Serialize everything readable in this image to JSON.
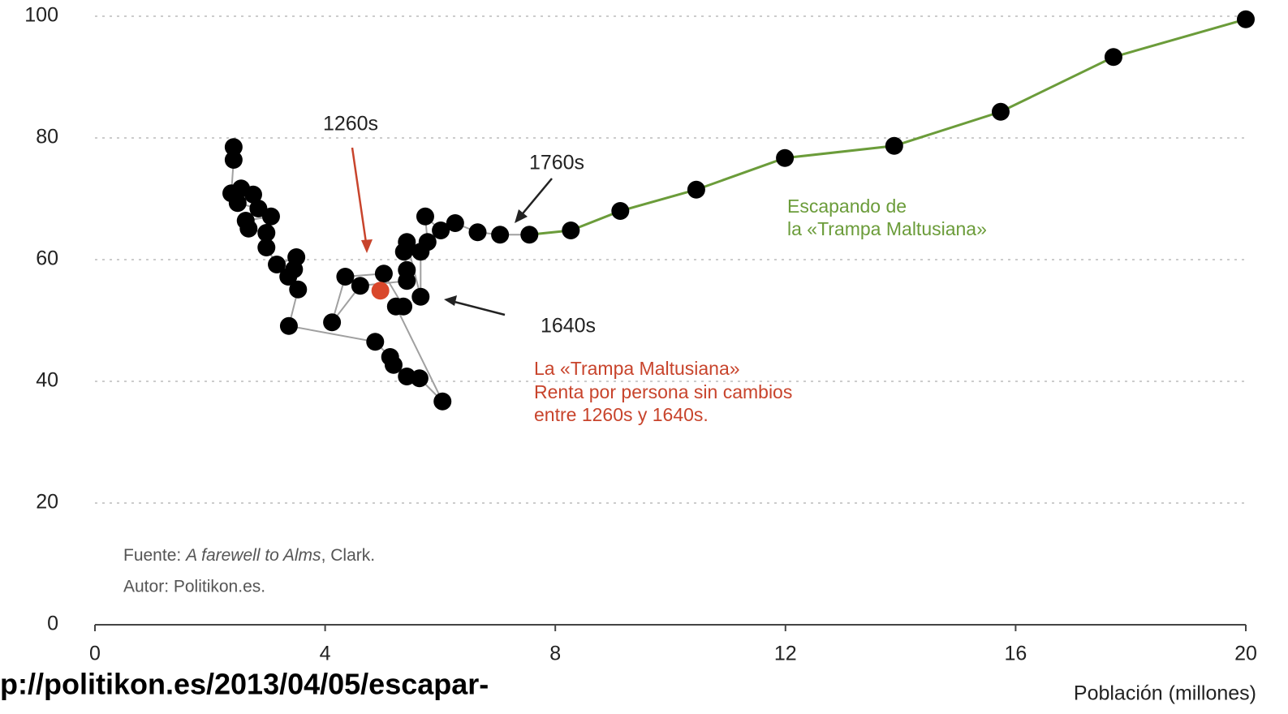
{
  "chart_data": {
    "type": "scatter",
    "xlabel": "Población (millones)",
    "xlim": [
      0,
      20
    ],
    "xticks": [
      0,
      4,
      8,
      12,
      16,
      20
    ],
    "ylim": [
      0,
      100
    ],
    "yticks": [
      0,
      20,
      40,
      60,
      80,
      100
    ],
    "grid": true,
    "series": [
      {
        "color": "#000000",
        "line_color": "#a0a0a0",
        "x": [
          2.41,
          2.41,
          2.37,
          2.54,
          2.75,
          2.48,
          2.84,
          3.06,
          2.62,
          2.67,
          2.98,
          2.98,
          3.16,
          3.5,
          3.46,
          3.36,
          3.53,
          3.37,
          4.87,
          5.13,
          5.19,
          5.42,
          5.64,
          6.04,
          5.23,
          5.36,
          5.02,
          4.35,
          4.12,
          4.61,
          5.42,
          5.42,
          5.37,
          5.42,
          5.66,
          5.66,
          5.78,
          5.74,
          6.01,
          6.26,
          6.65,
          7.04,
          7.55
        ],
        "values": [
          78.5,
          76.4,
          70.9,
          71.7,
          70.7,
          69.3,
          68.4,
          67.1,
          66.4,
          65.1,
          64.4,
          62.0,
          59.2,
          60.4,
          58.4,
          57.2,
          55.1,
          49.1,
          46.5,
          44.0,
          42.7,
          40.8,
          40.5,
          36.7,
          52.3,
          52.3,
          57.7,
          57.2,
          49.7,
          55.7,
          56.5,
          58.3,
          61.3,
          62.9,
          53.9,
          61.3,
          62.9,
          67.1,
          64.8,
          66.0,
          64.5,
          64.1,
          64.1
        ]
      },
      {
        "color": "#d9472b",
        "x": [
          4.96
        ],
        "values": [
          54.9
        ]
      },
      {
        "color": "#000000",
        "line_color": "#6b9c3a",
        "x": [
          8.27,
          9.13,
          10.45,
          11.99,
          13.89,
          15.74,
          17.7,
          20.0
        ],
        "values": [
          64.8,
          68.0,
          71.5,
          76.7,
          78.7,
          84.3,
          93.3,
          99.5
        ]
      }
    ],
    "annotations": {
      "label_1260": "1260s",
      "label_1760": "1760s",
      "label_1640": "1640s",
      "escape": [
        "Escapando de",
        "la «Trampa Maltusiana»"
      ],
      "trap": [
        "La «Trampa Maltusiana»",
        "Renta por persona sin cambios",
        "entre 1260s y 1640s."
      ]
    },
    "source": {
      "prefix": "Fuente: ",
      "work": "A farewell to Alms",
      "suffix": ", Clark."
    },
    "author": "Autor: Politikon.es.",
    "url": "p://politikon.es/2013/04/05/escapar-"
  }
}
